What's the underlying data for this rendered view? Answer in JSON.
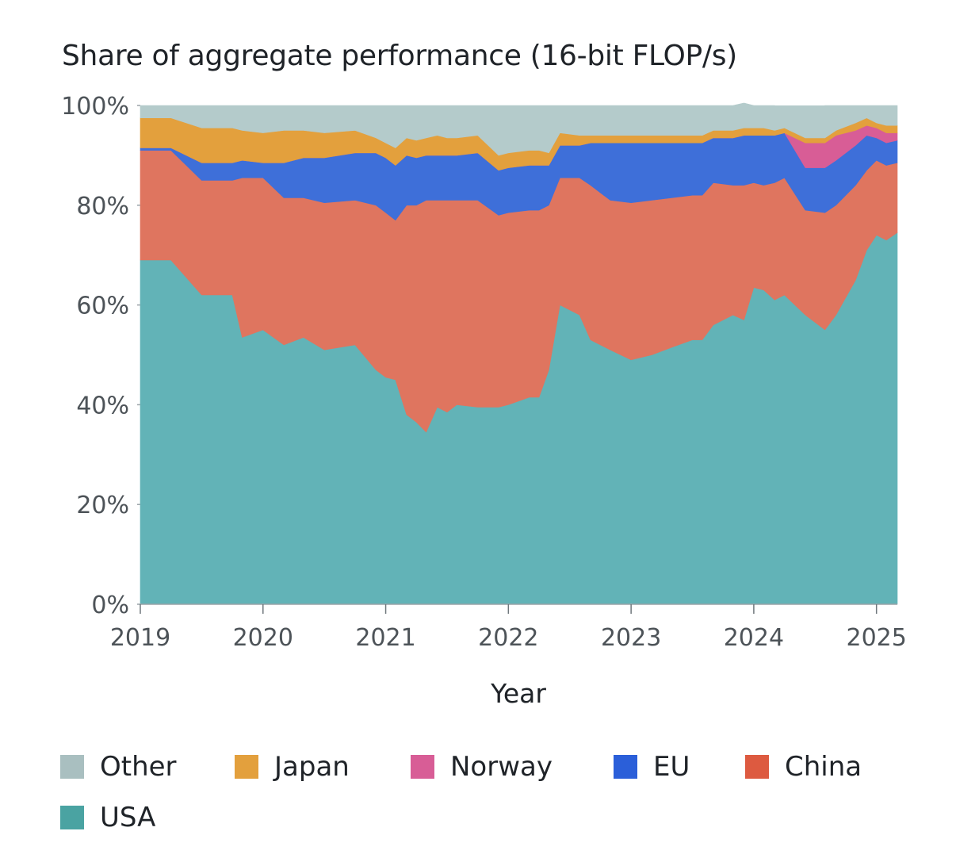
{
  "chart_data": {
    "type": "area",
    "stacked": true,
    "normalized": true,
    "title": "Share of aggregate performance (16-bit FLOP/s)",
    "xlabel": "Year",
    "ylabel": "",
    "xlim": [
      2019.0,
      2025.17
    ],
    "ylim": [
      0,
      100
    ],
    "x_ticks": [
      "2019",
      "2020",
      "2021",
      "2022",
      "2023",
      "2024",
      "2025"
    ],
    "y_ticks": [
      "0%",
      "20%",
      "40%",
      "60%",
      "80%",
      "100%"
    ],
    "grid": false,
    "legend": "bottom",
    "x": [
      2019.0,
      2019.25,
      2019.5,
      2019.75,
      2019.83,
      2020.0,
      2020.17,
      2020.33,
      2020.5,
      2020.75,
      2020.92,
      2021.0,
      2021.08,
      2021.17,
      2021.25,
      2021.33,
      2021.42,
      2021.5,
      2021.58,
      2021.75,
      2021.92,
      2022.0,
      2022.17,
      2022.25,
      2022.33,
      2022.42,
      2022.58,
      2022.67,
      2022.83,
      2023.0,
      2023.17,
      2023.33,
      2023.5,
      2023.58,
      2023.67,
      2023.83,
      2023.92,
      2024.0,
      2024.08,
      2024.17,
      2024.25,
      2024.42,
      2024.58,
      2024.67,
      2024.83,
      2024.92,
      2025.0,
      2025.08,
      2025.17
    ],
    "series": [
      {
        "name": "USA",
        "color": "#62b3b7",
        "values": [
          69,
          69,
          62,
          62,
          53.5,
          55,
          52,
          53.5,
          51,
          52,
          47,
          45.5,
          45,
          38,
          36.5,
          34.5,
          39.5,
          38.5,
          40,
          39.5,
          39.5,
          40,
          41.5,
          41.5,
          47,
          60,
          58,
          53,
          51,
          49,
          50,
          51.5,
          53,
          53,
          56,
          58,
          57,
          63.5,
          63,
          61,
          62,
          58,
          55,
          58,
          65,
          71,
          74,
          73,
          74.5
        ]
      },
      {
        "name": "China",
        "color": "#df755f",
        "values": [
          22,
          22,
          23,
          23,
          32,
          30.5,
          29.5,
          28,
          29.5,
          29,
          33,
          33,
          32,
          42,
          43.5,
          46.5,
          41.5,
          42.5,
          41,
          41.5,
          38.5,
          38.5,
          37.5,
          37.5,
          33,
          25.5,
          27.5,
          31,
          30,
          31.5,
          31,
          30,
          29,
          29,
          28.5,
          26,
          27,
          21,
          21,
          23.5,
          23.5,
          21,
          23.5,
          22,
          19,
          16,
          15,
          15,
          14
        ]
      },
      {
        "name": "EU",
        "color": "#3e6fd9",
        "values": [
          0.5,
          0.5,
          3.5,
          3.5,
          3.5,
          3,
          7,
          8,
          9,
          9.5,
          10.5,
          11,
          11,
          10,
          9.5,
          9,
          9,
          9,
          9,
          9.5,
          9,
          9,
          9,
          9,
          8,
          6.5,
          6.5,
          8.5,
          11.5,
          12,
          11.5,
          11,
          10.5,
          10.5,
          9,
          9.5,
          10,
          9.5,
          10,
          9.5,
          9,
          8.5,
          9,
          9,
          8,
          7,
          4.5,
          4.5,
          4.5
        ]
      },
      {
        "name": "Norway",
        "color": "#d85d96",
        "values": [
          0,
          0,
          0,
          0,
          0,
          0,
          0,
          0,
          0,
          0,
          0,
          0,
          0,
          0,
          0,
          0,
          0,
          0,
          0,
          0,
          0,
          0,
          0,
          0,
          0,
          0,
          0,
          0,
          0,
          0,
          0,
          0,
          0,
          0,
          0,
          0,
          0,
          0,
          0,
          0,
          0,
          5,
          5,
          5,
          3,
          2,
          2,
          2,
          1.5
        ]
      },
      {
        "name": "Japan",
        "color": "#e3a03d",
        "values": [
          6,
          6,
          7,
          7,
          6,
          6,
          6.5,
          5.5,
          5,
          4.5,
          3,
          3,
          3.5,
          3.5,
          3.5,
          3.5,
          4,
          3.5,
          3.5,
          3.5,
          3,
          3,
          3,
          3,
          2.5,
          2.5,
          2,
          1.5,
          1.5,
          1.5,
          1.5,
          1.5,
          1.5,
          1.5,
          1.5,
          1.5,
          1.5,
          1.5,
          1.5,
          1,
          1,
          1,
          1,
          1,
          1.5,
          1.5,
          1,
          1.5,
          1.5
        ]
      },
      {
        "name": "Other",
        "color": "#b4cbcb",
        "values": [
          2.5,
          2.5,
          4.5,
          4.5,
          5,
          5.5,
          5,
          5,
          5.5,
          5,
          6.5,
          7.5,
          8.5,
          6.5,
          7,
          6.5,
          6,
          6.5,
          6.5,
          6,
          10,
          9.5,
          9,
          9,
          9.5,
          5.5,
          6,
          6,
          6,
          6,
          6,
          6,
          6,
          6,
          5,
          5,
          5,
          4.5,
          4.5,
          5,
          3.5,
          5.5,
          6.5,
          5,
          3.5,
          2.5,
          3.5,
          4,
          4
        ]
      }
    ]
  },
  "legend": {
    "items": [
      {
        "label": "Other",
        "color": "#a9bfc0"
      },
      {
        "label": "Japan",
        "color": "#e3a03d"
      },
      {
        "label": "Norway",
        "color": "#d85d96"
      },
      {
        "label": "EU",
        "color": "#2b5fd9"
      },
      {
        "label": "China",
        "color": "#dd5a40"
      },
      {
        "label": "USA",
        "color": "#4aa3a2"
      }
    ]
  }
}
